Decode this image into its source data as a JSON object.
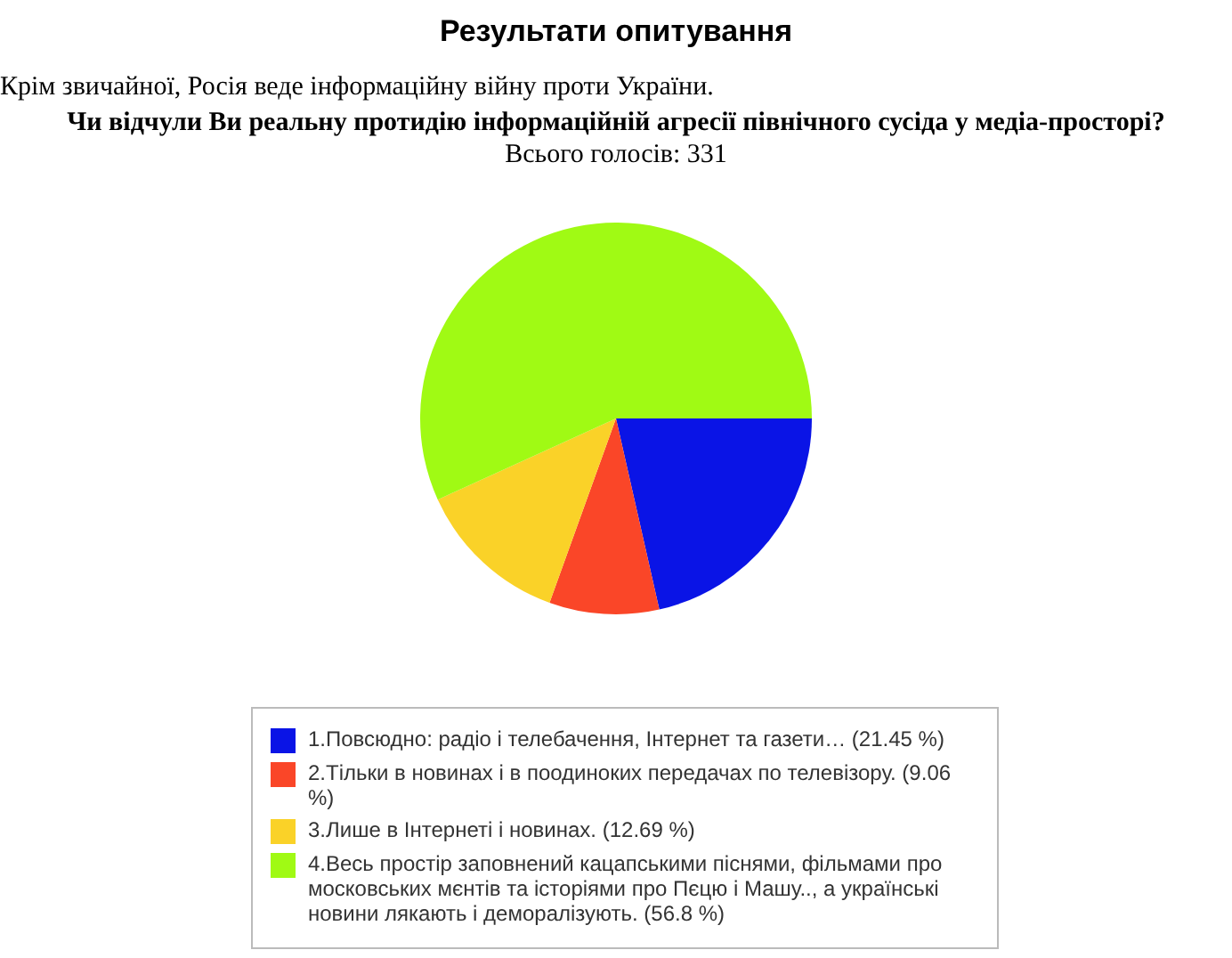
{
  "chart_data": {
    "type": "pie",
    "title": "Результати опитування",
    "subtitle": "Чи відчули Ви реальну протидію інформаційній агресії північного сусіда у медіа-просторі?",
    "annotations": [
      "Крім звичайної, Росія веде інформаційну війну проти України.",
      "Всього голосів: 331"
    ],
    "categories": [
      "1.Повсюдно: радіо і телебачення, Інтернет та газети… (21.45 %)",
      "2.Тільки в новинах і в поодиноких передачах по телевізору. (9.06 %)",
      "3.Лише в Інтернеті і новинах. (12.69 %)",
      "4.Весь простір заповнений кацапськими піснями, фільмами про московських мєнтів та історіями про Пєцю і Машу.., а українські новини лякають і деморалізують. (56.8 %)"
    ],
    "values": [
      21.45,
      9.06,
      12.69,
      56.8
    ],
    "colors": [
      "#0a14e6",
      "#fa4628",
      "#fad228",
      "#a0fa14"
    ],
    "legend": "bottom"
  }
}
